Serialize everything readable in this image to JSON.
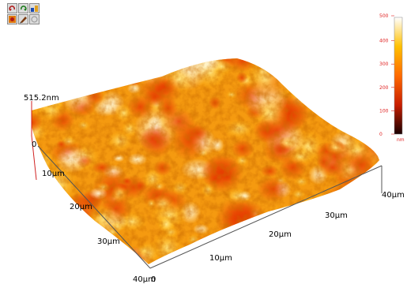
{
  "toolbar": {
    "buttons": [
      {
        "name": "rotate-left-button",
        "icon": "rotate-left-icon",
        "color": "#b01818"
      },
      {
        "name": "rotate-right-button",
        "icon": "rotate-right-icon",
        "color": "#1a7a1a"
      },
      {
        "name": "lighting-button",
        "icon": "lighting-icon",
        "color": "#1a4ab0"
      },
      {
        "name": "color-map-button",
        "icon": "color-map-icon",
        "color": "#e07a10"
      },
      {
        "name": "pencil-button",
        "icon": "pencil-icon",
        "color": "#7a3a10"
      },
      {
        "name": "reset-view-button",
        "icon": "reset-view-icon",
        "color": "#a0a0a0"
      }
    ]
  },
  "plot": {
    "z_max_label": "515.2nm",
    "z_zero_label": "0",
    "x_axis_ticks": [
      "40µm",
      "30µm",
      "20µm",
      "10µm",
      "0"
    ],
    "y_axis_ticks": [
      "10µm",
      "20µm",
      "30µm",
      "40µm"
    ]
  },
  "colorbar": {
    "ticks": [
      "500",
      "400",
      "300",
      "200",
      "100",
      "0"
    ],
    "unit": "nm",
    "colors": {
      "low": "#1a0000",
      "mid_low": "#c81e00",
      "mid": "#ff6a00",
      "mid_high": "#ffc000",
      "high": "#ffffff"
    }
  }
}
